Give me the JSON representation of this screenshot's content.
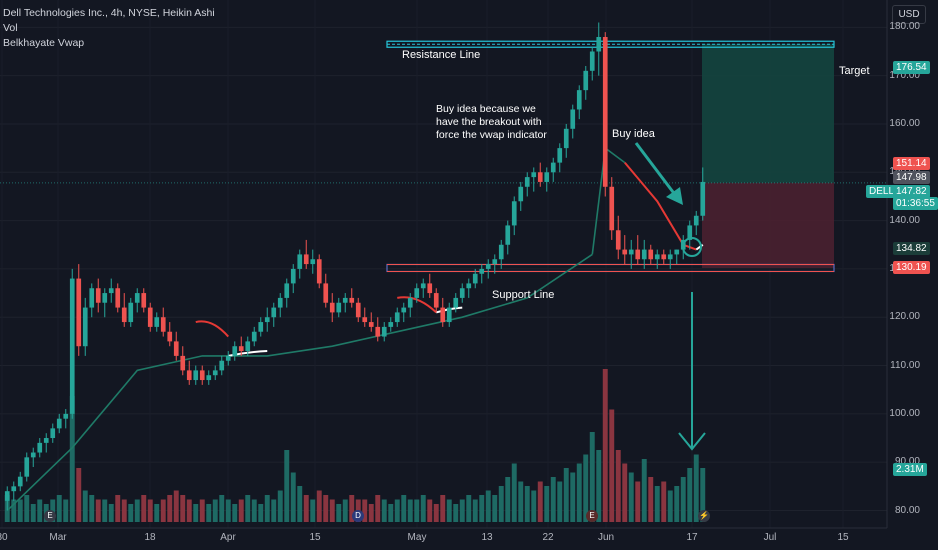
{
  "legend": {
    "title": "Dell Technologies Inc., 4h, NYSE, Heikin Ashi",
    "vol": "Vol",
    "indicator": "Belkhayate Vwap"
  },
  "currency_button": "USD",
  "annotations": {
    "resistance": "Resistance Line",
    "support": "Support Line",
    "target": "Target",
    "buy_idea": "Buy idea",
    "note_line1": "Buy idea because we",
    "note_line2": "have the breakout with",
    "note_line3": "force the vwap indicator"
  },
  "price_labels": {
    "target": "176.54",
    "red": "151.14",
    "gray": "147.98",
    "ticker": "DELL",
    "last": "147.82",
    "countdown": "01:36:55",
    "vwap": "134.82",
    "stop": "130.19",
    "volume": "2.31M"
  },
  "colors": {
    "bull": "#26a69a",
    "bear": "#ef5350",
    "vol_bull": "#1e6a64",
    "vol_bear": "#8a3540",
    "vwap_green": "#1f7a67",
    "vwap_red": "#e53935",
    "resistance": "#26c6da",
    "support": "#5c6bc0",
    "target_zone": "#14453f",
    "stop_zone": "#4a2030"
  },
  "chart_data": {
    "type": "candlestick",
    "symbol": "DELL",
    "exchange": "NYSE",
    "interval": "4h",
    "candle_type": "Heikin Ashi",
    "y_axis": {
      "ticks": [
        80,
        90,
        100,
        110,
        120,
        130,
        140,
        150,
        160,
        170,
        180
      ],
      "ylim": [
        77,
        184
      ]
    },
    "x_axis": {
      "ticks": [
        "30",
        "Mar",
        "18",
        "Apr",
        "15",
        "May",
        "13",
        "22",
        "Jun",
        "17",
        "Jul",
        "15"
      ]
    },
    "levels": {
      "resistance": 176.5,
      "support": 130.3,
      "target": 176.54,
      "stop": 130.19,
      "last": 147.82
    },
    "ohlc": [
      [
        82,
        85,
        80,
        84
      ],
      [
        84,
        86,
        82,
        85
      ],
      [
        85,
        88,
        84,
        87
      ],
      [
        87,
        92,
        86,
        91
      ],
      [
        91,
        93,
        89,
        92
      ],
      [
        92,
        95,
        91,
        94
      ],
      [
        94,
        96,
        92,
        95
      ],
      [
        95,
        98,
        94,
        97
      ],
      [
        97,
        100,
        96,
        99
      ],
      [
        99,
        101,
        97,
        100
      ],
      [
        100,
        130,
        99,
        128
      ],
      [
        128,
        131,
        112,
        114
      ],
      [
        114,
        124,
        112,
        122
      ],
      [
        122,
        127,
        120,
        126
      ],
      [
        126,
        128,
        121,
        123
      ],
      [
        123,
        126,
        120,
        125
      ],
      [
        125,
        128,
        123,
        126
      ],
      [
        126,
        127,
        121,
        122
      ],
      [
        122,
        125,
        118,
        119
      ],
      [
        119,
        124,
        118,
        123
      ],
      [
        123,
        126,
        121,
        125
      ],
      [
        125,
        126,
        121,
        122
      ],
      [
        122,
        123,
        117,
        118
      ],
      [
        118,
        121,
        117,
        120
      ],
      [
        120,
        122,
        116,
        117
      ],
      [
        117,
        119,
        114,
        115
      ],
      [
        115,
        117,
        111,
        112
      ],
      [
        112,
        114,
        108,
        109
      ],
      [
        109,
        111,
        106,
        107
      ],
      [
        107,
        110,
        106,
        109
      ],
      [
        109,
        110,
        106,
        107
      ],
      [
        107,
        109,
        106,
        108
      ],
      [
        108,
        110,
        107,
        109
      ],
      [
        109,
        112,
        108,
        111
      ],
      [
        111,
        113,
        110,
        112
      ],
      [
        112,
        115,
        111,
        114
      ],
      [
        114,
        116,
        112,
        113
      ],
      [
        113,
        116,
        112,
        115
      ],
      [
        115,
        118,
        114,
        117
      ],
      [
        117,
        120,
        116,
        119
      ],
      [
        119,
        122,
        117,
        120
      ],
      [
        120,
        123,
        118,
        122
      ],
      [
        122,
        125,
        120,
        124
      ],
      [
        124,
        128,
        122,
        127
      ],
      [
        127,
        131,
        125,
        130
      ],
      [
        130,
        134,
        128,
        133
      ],
      [
        133,
        136,
        130,
        131
      ],
      [
        131,
        134,
        129,
        132
      ],
      [
        132,
        133,
        126,
        127
      ],
      [
        127,
        129,
        122,
        123
      ],
      [
        123,
        125,
        119,
        121
      ],
      [
        121,
        124,
        120,
        123
      ],
      [
        123,
        125,
        121,
        124
      ],
      [
        124,
        126,
        122,
        123
      ],
      [
        123,
        124,
        119,
        120
      ],
      [
        120,
        122,
        118,
        119
      ],
      [
        119,
        121,
        117,
        118
      ],
      [
        118,
        120,
        115,
        116
      ],
      [
        116,
        119,
        115,
        118
      ],
      [
        118,
        120,
        117,
        119
      ],
      [
        119,
        122,
        118,
        121
      ],
      [
        121,
        123,
        119,
        122
      ],
      [
        122,
        125,
        120,
        124
      ],
      [
        124,
        127,
        123,
        126
      ],
      [
        126,
        128,
        124,
        127
      ],
      [
        127,
        129,
        124,
        125
      ],
      [
        125,
        126,
        121,
        122
      ],
      [
        122,
        124,
        118,
        119
      ],
      [
        119,
        123,
        118,
        122
      ],
      [
        122,
        125,
        121,
        124
      ],
      [
        124,
        127,
        123,
        126
      ],
      [
        126,
        128,
        124,
        127
      ],
      [
        127,
        130,
        126,
        129
      ],
      [
        129,
        131,
        127,
        130
      ],
      [
        130,
        132,
        128,
        131
      ],
      [
        131,
        133,
        129,
        132
      ],
      [
        132,
        136,
        130,
        135
      ],
      [
        135,
        140,
        133,
        139
      ],
      [
        139,
        145,
        137,
        144
      ],
      [
        144,
        148,
        142,
        147
      ],
      [
        147,
        150,
        145,
        149
      ],
      [
        149,
        151,
        146,
        150
      ],
      [
        150,
        152,
        147,
        148
      ],
      [
        148,
        151,
        146,
        150
      ],
      [
        150,
        153,
        148,
        152
      ],
      [
        152,
        156,
        150,
        155
      ],
      [
        155,
        160,
        153,
        159
      ],
      [
        159,
        164,
        157,
        163
      ],
      [
        163,
        168,
        161,
        167
      ],
      [
        167,
        172,
        165,
        171
      ],
      [
        171,
        176,
        169,
        175
      ],
      [
        175,
        181,
        170,
        178
      ],
      [
        178,
        179,
        145,
        147
      ],
      [
        147,
        149,
        136,
        138
      ],
      [
        138,
        141,
        132,
        134
      ],
      [
        134,
        137,
        131,
        133
      ],
      [
        133,
        136,
        130,
        134
      ],
      [
        134,
        137,
        131,
        132
      ],
      [
        132,
        136,
        130,
        134
      ],
      [
        134,
        135,
        131,
        132
      ],
      [
        132,
        134,
        130,
        133
      ],
      [
        133,
        134,
        131,
        132
      ],
      [
        132,
        134,
        130,
        133
      ],
      [
        133,
        134,
        131,
        134
      ],
      [
        134,
        137,
        132,
        136
      ],
      [
        136,
        140,
        134,
        139
      ],
      [
        139,
        142,
        137,
        141
      ],
      [
        141,
        151,
        140,
        148
      ]
    ],
    "vwap_path": [
      [
        0,
        80
      ],
      [
        10,
        93
      ],
      [
        20,
        109
      ],
      [
        30,
        112
      ],
      [
        40,
        112
      ],
      [
        50,
        114
      ],
      [
        60,
        117
      ],
      [
        70,
        120
      ],
      [
        80,
        124
      ],
      [
        90,
        133
      ],
      [
        92,
        155
      ],
      [
        95,
        152
      ],
      [
        100,
        144
      ],
      [
        104,
        135
      ],
      [
        106,
        134
      ],
      [
        107,
        135
      ]
    ],
    "volume": [
      0.6,
      0.5,
      0.5,
      0.6,
      0.4,
      0.5,
      0.4,
      0.5,
      0.6,
      0.5,
      2.8,
      1.2,
      0.7,
      0.6,
      0.5,
      0.5,
      0.4,
      0.6,
      0.5,
      0.4,
      0.5,
      0.6,
      0.5,
      0.4,
      0.5,
      0.6,
      0.7,
      0.6,
      0.5,
      0.4,
      0.5,
      0.4,
      0.5,
      0.6,
      0.5,
      0.4,
      0.5,
      0.6,
      0.5,
      0.4,
      0.6,
      0.5,
      0.7,
      1.6,
      1.1,
      0.8,
      0.6,
      0.5,
      0.7,
      0.6,
      0.5,
      0.4,
      0.5,
      0.6,
      0.5,
      0.5,
      0.4,
      0.6,
      0.5,
      0.4,
      0.5,
      0.6,
      0.5,
      0.5,
      0.6,
      0.5,
      0.4,
      0.6,
      0.5,
      0.4,
      0.5,
      0.6,
      0.5,
      0.6,
      0.7,
      0.6,
      0.8,
      1.0,
      1.3,
      0.9,
      0.8,
      0.7,
      0.9,
      0.8,
      1.0,
      0.9,
      1.2,
      1.1,
      1.3,
      1.5,
      2.0,
      1.6,
      3.4,
      2.5,
      1.6,
      1.3,
      1.1,
      0.9,
      1.4,
      1.0,
      0.8,
      0.9,
      0.7,
      0.8,
      1.0,
      1.2,
      1.5,
      1.2
    ]
  }
}
